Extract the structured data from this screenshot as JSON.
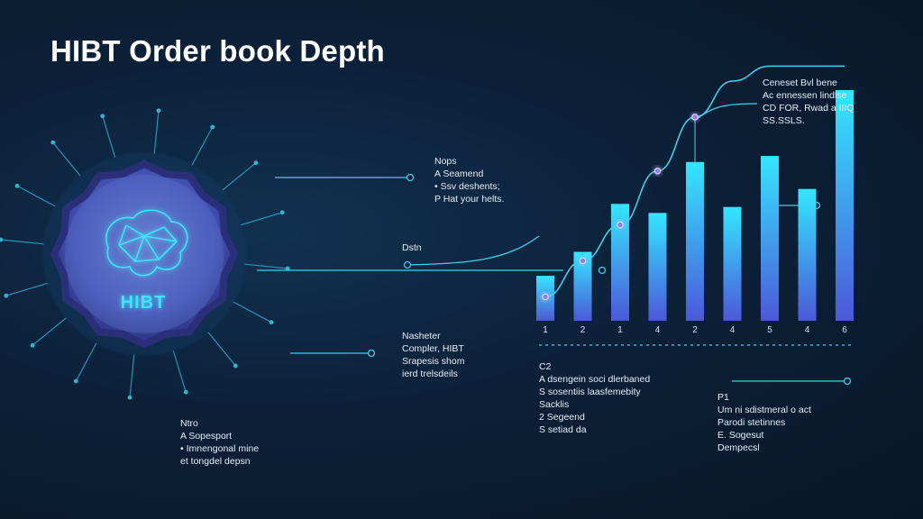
{
  "title": "HIBT Order book Depth",
  "badge_label": "HIBT",
  "colors": {
    "accent": "#3fe3ff",
    "bar_top": "#35e6ff",
    "bar_bottom": "#4c58d8",
    "badge": "#3c49b8",
    "background": "#0c2038"
  },
  "icons": {
    "badge": "brain-network-icon"
  },
  "notes": {
    "top_right": [
      "Ceneset Bvl bene",
      "Ac ennessen lindlse",
      "CD FOR, Rwad a IIIQ",
      "SS.SSLS."
    ],
    "mid_upper": [
      "Nops",
      "A Seamend",
      "• Ssv deshents;",
      "P Hat your helts."
    ],
    "depth": [
      "Dstn"
    ],
    "mid_lower": [
      "Nasheter",
      "Compler, HIBT",
      "Srapesis shom",
      "ierd trelsdeils"
    ],
    "bottom_left": [
      "Ntro",
      "A Sopesport",
      "• Imnengonal mine",
      "et tongdel depsn"
    ],
    "bottom_mid": [
      "C2",
      "A dsengein soci dlerbaned",
      "S sosentiis laasfemebity",
      "Sacklis",
      "2 Segeend",
      "S setiad da"
    ],
    "bottom_right": [
      "P1",
      "Um ni sdistmeral o act",
      "Parodi stetinnes",
      "E. Sogesut",
      "Dempecsl"
    ]
  },
  "chart_data": {
    "type": "bar",
    "categories": [
      "1",
      "2",
      "1",
      "4",
      "2",
      "4",
      "5",
      "4",
      "6"
    ],
    "values": [
      15,
      23,
      39,
      36,
      53,
      38,
      55,
      44,
      77
    ],
    "ylim": [
      0,
      80
    ],
    "curve": [
      8,
      20,
      32,
      50,
      68,
      80,
      85,
      85,
      85
    ],
    "grid": false
  }
}
